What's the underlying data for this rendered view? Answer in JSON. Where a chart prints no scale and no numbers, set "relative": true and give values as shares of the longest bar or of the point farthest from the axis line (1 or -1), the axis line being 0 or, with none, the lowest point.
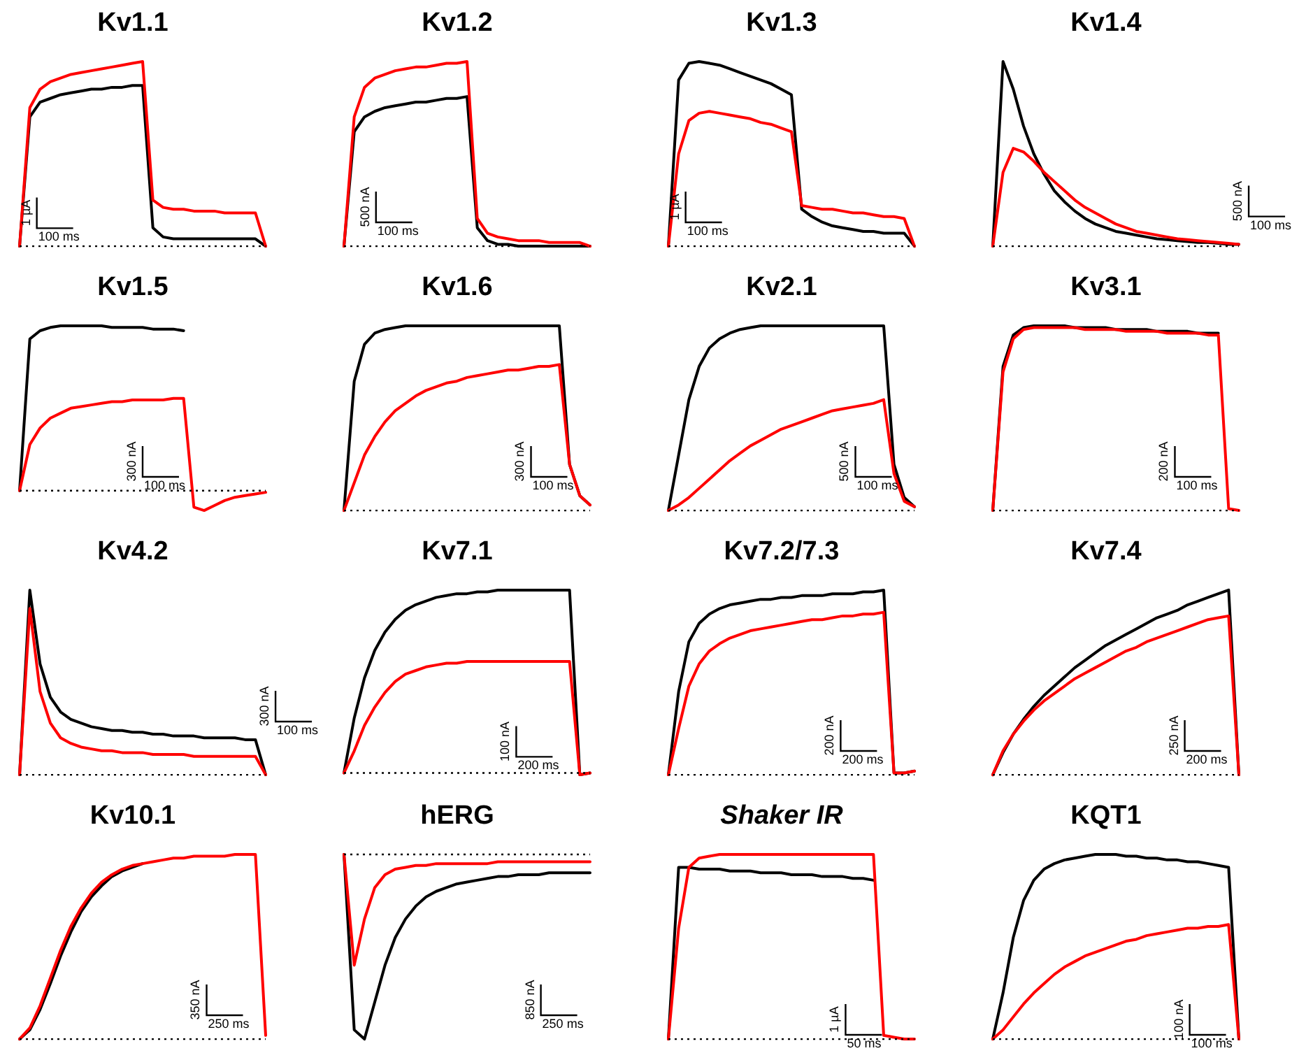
{
  "chart_data": [
    {
      "type": "line",
      "title": "Kv1.1",
      "relative": true,
      "categories": [
        null,
        null,
        null,
        null,
        null,
        null,
        null,
        null,
        null,
        null,
        null,
        null,
        null,
        null,
        null,
        null,
        null,
        null,
        null,
        null,
        null,
        null,
        null,
        null,
        null
      ],
      "series": [
        {
          "color": "#000000",
          "values": [
            0,
            0.7,
            0.78,
            0.8,
            0.82,
            0.83,
            0.84,
            0.85,
            0.85,
            0.86,
            0.86,
            0.87,
            0.87,
            0.1,
            0.05,
            0.04,
            0.04,
            0.04,
            0.04,
            0.04,
            0.04,
            0.04,
            0.04,
            0.04,
            0
          ]
        },
        {
          "color": "#ff0000",
          "values": [
            0,
            0.75,
            0.85,
            0.89,
            0.91,
            0.93,
            0.94,
            0.95,
            0.96,
            0.97,
            0.98,
            0.99,
            1.0,
            0.25,
            0.21,
            0.2,
            0.2,
            0.19,
            0.19,
            0.19,
            0.18,
            0.18,
            0.18,
            0.18,
            0
          ]
        }
      ],
      "ref_lines": [
        {
          "axis": "y",
          "value": 0,
          "color": "#000000",
          "line_style": "dotted"
        }
      ],
      "annotations": [
        "1 µA",
        "100 ms"
      ]
    },
    {
      "type": "line",
      "title": "Kv1.2",
      "relative": true,
      "categories": [
        null,
        null,
        null,
        null,
        null,
        null,
        null,
        null,
        null,
        null,
        null,
        null,
        null,
        null,
        null,
        null,
        null,
        null,
        null,
        null,
        null,
        null,
        null,
        null,
        null
      ],
      "series": [
        {
          "color": "#000000",
          "values": [
            0,
            0.62,
            0.7,
            0.73,
            0.75,
            0.76,
            0.77,
            0.78,
            0.78,
            0.79,
            0.8,
            0.8,
            0.81,
            0.1,
            0.03,
            0.01,
            0.01,
            0,
            0,
            0,
            0,
            0,
            0,
            0,
            0
          ]
        },
        {
          "color": "#ff0000",
          "values": [
            0,
            0.7,
            0.86,
            0.91,
            0.93,
            0.95,
            0.96,
            0.97,
            0.97,
            0.98,
            0.99,
            0.99,
            1.0,
            0.15,
            0.07,
            0.05,
            0.04,
            0.03,
            0.03,
            0.03,
            0.02,
            0.02,
            0.02,
            0.02,
            0
          ]
        }
      ],
      "ref_lines": [
        {
          "axis": "y",
          "value": 0,
          "color": "#000000",
          "line_style": "dotted"
        }
      ],
      "annotations": [
        "500 nA",
        "100 ms"
      ]
    },
    {
      "type": "line",
      "title": "Kv1.3",
      "relative": true,
      "categories": [
        null,
        null,
        null,
        null,
        null,
        null,
        null,
        null,
        null,
        null,
        null,
        null,
        null,
        null,
        null,
        null,
        null,
        null,
        null,
        null,
        null,
        null,
        null,
        null,
        null
      ],
      "series": [
        {
          "color": "#000000",
          "values": [
            0,
            0.9,
            0.99,
            1.0,
            0.99,
            0.98,
            0.96,
            0.94,
            0.92,
            0.9,
            0.88,
            0.85,
            0.82,
            0.2,
            0.16,
            0.13,
            0.11,
            0.1,
            0.09,
            0.08,
            0.08,
            0.07,
            0.07,
            0.07,
            0
          ]
        },
        {
          "color": "#ff0000",
          "values": [
            0,
            0.5,
            0.68,
            0.72,
            0.73,
            0.72,
            0.71,
            0.7,
            0.69,
            0.67,
            0.66,
            0.64,
            0.62,
            0.22,
            0.21,
            0.2,
            0.2,
            0.19,
            0.18,
            0.18,
            0.17,
            0.16,
            0.16,
            0.15,
            0
          ]
        }
      ],
      "ref_lines": [
        {
          "axis": "y",
          "value": 0,
          "color": "#000000",
          "line_style": "dotted"
        }
      ],
      "annotations": [
        "1 µA",
        "100 ms"
      ]
    },
    {
      "type": "line",
      "title": "Kv1.4",
      "relative": true,
      "categories": [
        null,
        null,
        null,
        null,
        null,
        null,
        null,
        null,
        null,
        null,
        null,
        null,
        null,
        null,
        null,
        null,
        null,
        null,
        null,
        null,
        null,
        null,
        null,
        null,
        null
      ],
      "series": [
        {
          "color": "#000000",
          "values": [
            0,
            1.0,
            0.85,
            0.65,
            0.5,
            0.39,
            0.3,
            0.24,
            0.19,
            0.15,
            0.12,
            0.1,
            0.08,
            0.07,
            0.06,
            0.05,
            0.04,
            0.035,
            0.03,
            0.025,
            0.02,
            0.02,
            0.015,
            0.01,
            0.01
          ]
        },
        {
          "color": "#ff0000",
          "values": [
            0,
            0.4,
            0.53,
            0.51,
            0.46,
            0.4,
            0.35,
            0.3,
            0.25,
            0.21,
            0.18,
            0.15,
            0.12,
            0.1,
            0.08,
            0.07,
            0.06,
            0.05,
            0.04,
            0.035,
            0.03,
            0.025,
            0.02,
            0.015,
            0.01
          ]
        }
      ],
      "ref_lines": [
        {
          "axis": "y",
          "value": 0,
          "color": "#000000",
          "line_style": "dotted"
        }
      ],
      "annotations": [
        "500 nA",
        "100 ms"
      ]
    },
    {
      "type": "line",
      "title": "Kv1.5",
      "relative": true,
      "categories": [
        null,
        null,
        null,
        null,
        null,
        null,
        null,
        null,
        null,
        null,
        null,
        null,
        null,
        null,
        null,
        null,
        null,
        null,
        null,
        null,
        null,
        null,
        null,
        null,
        null
      ],
      "series": [
        {
          "color": "#000000",
          "values": [
            0,
            0.92,
            0.97,
            0.99,
            1.0,
            1.0,
            1.0,
            1.0,
            1.0,
            0.99,
            0.99,
            0.99,
            0.99,
            0.98,
            0.98,
            0.98,
            0.97,
            null,
            null,
            null,
            null,
            null,
            null,
            null,
            null
          ]
        },
        {
          "color": "#ff0000",
          "values": [
            0,
            0.28,
            0.38,
            0.44,
            0.47,
            0.5,
            0.51,
            0.52,
            0.53,
            0.54,
            0.54,
            0.55,
            0.55,
            0.55,
            0.55,
            0.56,
            0.56,
            -0.1,
            -0.12,
            -0.09,
            -0.06,
            -0.04,
            -0.03,
            -0.02,
            -0.01
          ]
        }
      ],
      "ref_lines": [
        {
          "axis": "y",
          "value": 0,
          "color": "#000000",
          "line_style": "dotted"
        }
      ],
      "annotations": [
        "300 nA",
        "100 ms"
      ]
    },
    {
      "type": "line",
      "title": "Kv1.6",
      "relative": true,
      "categories": [
        null,
        null,
        null,
        null,
        null,
        null,
        null,
        null,
        null,
        null,
        null,
        null,
        null,
        null,
        null,
        null,
        null,
        null,
        null,
        null,
        null,
        null,
        null,
        null,
        null
      ],
      "series": [
        {
          "color": "#000000",
          "values": [
            0,
            0.7,
            0.9,
            0.96,
            0.98,
            0.99,
            1.0,
            1.0,
            1.0,
            1.0,
            1.0,
            1.0,
            1.0,
            1.0,
            1.0,
            1.0,
            1.0,
            1.0,
            1.0,
            1.0,
            1.0,
            1.0,
            0.25,
            0.08,
            0.03
          ]
        },
        {
          "color": "#ff0000",
          "values": [
            0,
            0.15,
            0.3,
            0.4,
            0.48,
            0.54,
            0.58,
            0.62,
            0.65,
            0.67,
            0.69,
            0.7,
            0.72,
            0.73,
            0.74,
            0.75,
            0.76,
            0.76,
            0.77,
            0.78,
            0.78,
            0.79,
            0.25,
            0.08,
            0.03
          ]
        }
      ],
      "ref_lines": [
        {
          "axis": "y",
          "value": 0,
          "color": "#000000",
          "line_style": "dotted"
        }
      ],
      "annotations": [
        "300 nA",
        "100 ms"
      ]
    },
    {
      "type": "line",
      "title": "Kv2.1",
      "relative": true,
      "categories": [
        null,
        null,
        null,
        null,
        null,
        null,
        null,
        null,
        null,
        null,
        null,
        null,
        null,
        null,
        null,
        null,
        null,
        null,
        null,
        null,
        null,
        null,
        null,
        null,
        null
      ],
      "series": [
        {
          "color": "#000000",
          "values": [
            0,
            0.3,
            0.6,
            0.78,
            0.88,
            0.93,
            0.96,
            0.98,
            0.99,
            1.0,
            1.0,
            1.0,
            1.0,
            1.0,
            1.0,
            1.0,
            1.0,
            1.0,
            1.0,
            1.0,
            1.0,
            1.0,
            0.25,
            0.07,
            0.02
          ]
        },
        {
          "color": "#ff0000",
          "values": [
            0,
            0.03,
            0.07,
            0.12,
            0.17,
            0.22,
            0.27,
            0.31,
            0.35,
            0.38,
            0.41,
            0.44,
            0.46,
            0.48,
            0.5,
            0.52,
            0.54,
            0.55,
            0.56,
            0.57,
            0.58,
            0.6,
            0.2,
            0.05,
            0.02
          ]
        }
      ],
      "ref_lines": [
        {
          "axis": "y",
          "value": 0,
          "color": "#000000",
          "line_style": "dotted"
        }
      ],
      "annotations": [
        "500 nA",
        "100 ms"
      ]
    },
    {
      "type": "line",
      "title": "Kv3.1",
      "relative": true,
      "categories": [
        null,
        null,
        null,
        null,
        null,
        null,
        null,
        null,
        null,
        null,
        null,
        null,
        null,
        null,
        null,
        null,
        null,
        null,
        null,
        null,
        null,
        null,
        null,
        null,
        null
      ],
      "series": [
        {
          "color": "#000000",
          "values": [
            0,
            0.78,
            0.95,
            0.99,
            1.0,
            1.0,
            1.0,
            1.0,
            0.99,
            0.99,
            0.99,
            0.99,
            0.98,
            0.98,
            0.98,
            0.98,
            0.97,
            0.97,
            0.97,
            0.97,
            0.96,
            0.96,
            0.96,
            null,
            null
          ]
        },
        {
          "color": "#ff0000",
          "values": [
            0,
            0.75,
            0.93,
            0.98,
            0.99,
            0.99,
            0.99,
            0.99,
            0.99,
            0.98,
            0.98,
            0.98,
            0.98,
            0.97,
            0.97,
            0.97,
            0.97,
            0.96,
            0.96,
            0.96,
            0.96,
            0.95,
            0.95,
            0.01,
            0
          ]
        }
      ],
      "ref_lines": [
        {
          "axis": "y",
          "value": 0,
          "color": "#000000",
          "line_style": "dotted"
        }
      ],
      "annotations": [
        "200 nA",
        "100 ms"
      ]
    },
    {
      "type": "line",
      "title": "Kv4.2",
      "relative": true,
      "categories": [
        null,
        null,
        null,
        null,
        null,
        null,
        null,
        null,
        null,
        null,
        null,
        null,
        null,
        null,
        null,
        null,
        null,
        null,
        null,
        null,
        null,
        null,
        null,
        null,
        null
      ],
      "series": [
        {
          "color": "#000000",
          "values": [
            0,
            1.0,
            0.6,
            0.42,
            0.34,
            0.3,
            0.28,
            0.26,
            0.25,
            0.24,
            0.24,
            0.23,
            0.23,
            0.22,
            0.22,
            0.21,
            0.21,
            0.21,
            0.2,
            0.2,
            0.2,
            0.2,
            0.19,
            0.19,
            0
          ]
        },
        {
          "color": "#ff0000",
          "values": [
            0,
            0.9,
            0.45,
            0.28,
            0.2,
            0.17,
            0.15,
            0.14,
            0.13,
            0.13,
            0.12,
            0.12,
            0.12,
            0.11,
            0.11,
            0.11,
            0.11,
            0.1,
            0.1,
            0.1,
            0.1,
            0.1,
            0.1,
            0.1,
            0
          ]
        }
      ],
      "ref_lines": [
        {
          "axis": "y",
          "value": 0,
          "color": "#000000",
          "line_style": "dotted"
        }
      ],
      "annotations": [
        "300 nA",
        "100 ms"
      ]
    },
    {
      "type": "line",
      "title": "Kv7.1",
      "relative": true,
      "categories": [
        null,
        null,
        null,
        null,
        null,
        null,
        null,
        null,
        null,
        null,
        null,
        null,
        null,
        null,
        null,
        null,
        null,
        null,
        null,
        null,
        null,
        null,
        null,
        null,
        null
      ],
      "series": [
        {
          "color": "#000000",
          "values": [
            0,
            0.3,
            0.52,
            0.67,
            0.77,
            0.84,
            0.89,
            0.92,
            0.94,
            0.96,
            0.97,
            0.98,
            0.98,
            0.99,
            0.99,
            1.0,
            1.0,
            1.0,
            1.0,
            1.0,
            1.0,
            1.0,
            1.0,
            -0.01,
            0
          ]
        },
        {
          "color": "#ff0000",
          "values": [
            0,
            0.12,
            0.26,
            0.36,
            0.44,
            0.5,
            0.54,
            0.56,
            0.58,
            0.59,
            0.6,
            0.6,
            0.61,
            0.61,
            0.61,
            0.61,
            0.61,
            0.61,
            0.61,
            0.61,
            0.61,
            0.61,
            0.61,
            -0.01,
            0
          ]
        }
      ],
      "ref_lines": [
        {
          "axis": "y",
          "value": 0,
          "color": "#000000",
          "line_style": "dotted"
        }
      ],
      "annotations": [
        "100 nA",
        "200 ms"
      ]
    },
    {
      "type": "line",
      "title": "Kv7.2/7.3",
      "relative": true,
      "categories": [
        null,
        null,
        null,
        null,
        null,
        null,
        null,
        null,
        null,
        null,
        null,
        null,
        null,
        null,
        null,
        null,
        null,
        null,
        null,
        null,
        null,
        null,
        null,
        null,
        null
      ],
      "series": [
        {
          "color": "#000000",
          "values": [
            0,
            0.45,
            0.72,
            0.82,
            0.87,
            0.9,
            0.92,
            0.93,
            0.94,
            0.95,
            0.95,
            0.96,
            0.96,
            0.97,
            0.97,
            0.97,
            0.98,
            0.98,
            0.98,
            0.99,
            0.99,
            1.0,
            0.01,
            0.01,
            0.02
          ]
        },
        {
          "color": "#ff0000",
          "values": [
            0,
            0.25,
            0.48,
            0.6,
            0.67,
            0.71,
            0.74,
            0.76,
            0.78,
            0.79,
            0.8,
            0.81,
            0.82,
            0.83,
            0.84,
            0.84,
            0.85,
            0.86,
            0.86,
            0.87,
            0.87,
            0.88,
            0.01,
            0.01,
            0.02
          ]
        }
      ],
      "ref_lines": [
        {
          "axis": "y",
          "value": 0,
          "color": "#000000",
          "line_style": "dotted"
        }
      ],
      "annotations": [
        "200 nA",
        "200 ms"
      ]
    },
    {
      "type": "line",
      "title": "Kv7.4",
      "relative": true,
      "categories": [
        null,
        null,
        null,
        null,
        null,
        null,
        null,
        null,
        null,
        null,
        null,
        null,
        null,
        null,
        null,
        null,
        null,
        null,
        null,
        null,
        null,
        null,
        null,
        null,
        null
      ],
      "series": [
        {
          "color": "#000000",
          "values": [
            0,
            0.12,
            0.22,
            0.3,
            0.37,
            0.43,
            0.48,
            0.53,
            0.58,
            0.62,
            0.66,
            0.7,
            0.73,
            0.76,
            0.79,
            0.82,
            0.85,
            0.87,
            0.89,
            0.92,
            0.94,
            0.96,
            0.98,
            1.0,
            0
          ]
        },
        {
          "color": "#ff0000",
          "values": [
            0,
            0.13,
            0.22,
            0.29,
            0.35,
            0.4,
            0.44,
            0.48,
            0.52,
            0.55,
            0.58,
            0.61,
            0.64,
            0.67,
            0.69,
            0.72,
            0.74,
            0.76,
            0.78,
            0.8,
            0.82,
            0.84,
            0.85,
            0.86,
            0
          ]
        }
      ],
      "ref_lines": [
        {
          "axis": "y",
          "value": 0,
          "color": "#000000",
          "line_style": "dotted"
        }
      ],
      "annotations": [
        "250 nA",
        "200 ms"
      ]
    },
    {
      "type": "line",
      "title": "Kv10.1",
      "relative": true,
      "categories": [
        null,
        null,
        null,
        null,
        null,
        null,
        null,
        null,
        null,
        null,
        null,
        null,
        null,
        null,
        null,
        null,
        null,
        null,
        null,
        null,
        null,
        null,
        null,
        null,
        null
      ],
      "series": [
        {
          "color": "#000000",
          "values": [
            0,
            0.05,
            0.16,
            0.3,
            0.45,
            0.58,
            0.69,
            0.77,
            0.83,
            0.88,
            0.91,
            0.93,
            0.95,
            null,
            null,
            null,
            null,
            null,
            null,
            null,
            null,
            null,
            null,
            null,
            null
          ]
        },
        {
          "color": "#ff0000",
          "values": [
            0,
            0.06,
            0.18,
            0.33,
            0.48,
            0.61,
            0.71,
            0.79,
            0.85,
            0.89,
            0.92,
            0.94,
            0.95,
            0.96,
            0.97,
            0.98,
            0.98,
            0.99,
            0.99,
            0.99,
            0.99,
            1.0,
            1.0,
            1.0,
            0.02
          ]
        }
      ],
      "ref_lines": [
        {
          "axis": "y",
          "value": 0,
          "color": "#000000",
          "line_style": "dotted"
        }
      ],
      "annotations": [
        "350 nA",
        "250 ms"
      ]
    },
    {
      "type": "line",
      "title": "hERG",
      "relative": true,
      "categories": [
        null,
        null,
        null,
        null,
        null,
        null,
        null,
        null,
        null,
        null,
        null,
        null,
        null,
        null,
        null,
        null,
        null,
        null,
        null,
        null,
        null,
        null,
        null,
        null,
        null
      ],
      "series": [
        {
          "color": "#000000",
          "values": [
            0,
            -0.95,
            -1.0,
            -0.8,
            -0.6,
            -0.45,
            -0.35,
            -0.28,
            -0.23,
            -0.2,
            -0.18,
            -0.16,
            -0.15,
            -0.14,
            -0.13,
            -0.12,
            -0.12,
            -0.11,
            -0.11,
            -0.11,
            -0.1,
            -0.1,
            -0.1,
            -0.1,
            -0.1
          ]
        },
        {
          "color": "#ff0000",
          "values": [
            0,
            -0.6,
            -0.35,
            -0.18,
            -0.11,
            -0.08,
            -0.07,
            -0.06,
            -0.06,
            -0.05,
            -0.05,
            -0.05,
            -0.05,
            -0.05,
            -0.05,
            -0.04,
            -0.04,
            -0.04,
            -0.04,
            -0.04,
            -0.04,
            -0.04,
            -0.04,
            -0.04,
            -0.04
          ]
        }
      ],
      "ref_lines": [
        {
          "axis": "y",
          "value": 0,
          "color": "#000000",
          "line_style": "dotted"
        }
      ],
      "annotations": [
        "850 nA",
        "250 ms"
      ]
    },
    {
      "type": "line",
      "title": "Shaker IR",
      "relative": true,
      "categories": [
        null,
        null,
        null,
        null,
        null,
        null,
        null,
        null,
        null,
        null,
        null,
        null,
        null,
        null,
        null,
        null,
        null,
        null,
        null,
        null,
        null,
        null,
        null,
        null,
        null
      ],
      "series": [
        {
          "color": "#000000",
          "values": [
            0,
            0.93,
            0.93,
            0.92,
            0.92,
            0.92,
            0.91,
            0.91,
            0.91,
            0.9,
            0.9,
            0.9,
            0.89,
            0.89,
            0.89,
            0.88,
            0.88,
            0.88,
            0.87,
            0.87,
            0.86,
            null,
            null,
            null,
            null
          ]
        },
        {
          "color": "#ff0000",
          "values": [
            0,
            0.6,
            0.93,
            0.98,
            0.99,
            1.0,
            1.0,
            1.0,
            1.0,
            1.0,
            1.0,
            1.0,
            1.0,
            1.0,
            1.0,
            1.0,
            1.0,
            1.0,
            1.0,
            1.0,
            1.0,
            0.02,
            0.01,
            0,
            0
          ]
        }
      ],
      "ref_lines": [
        {
          "axis": "y",
          "value": 0,
          "color": "#000000",
          "line_style": "dotted"
        }
      ],
      "annotations": [
        "1 µA",
        "50 ms"
      ]
    },
    {
      "type": "line",
      "title": "KQT1",
      "relative": true,
      "categories": [
        null,
        null,
        null,
        null,
        null,
        null,
        null,
        null,
        null,
        null,
        null,
        null,
        null,
        null,
        null,
        null,
        null,
        null,
        null,
        null,
        null,
        null,
        null,
        null,
        null
      ],
      "series": [
        {
          "color": "#000000",
          "values": [
            0,
            0.25,
            0.55,
            0.75,
            0.86,
            0.92,
            0.95,
            0.97,
            0.98,
            0.99,
            1.0,
            1.0,
            1.0,
            0.99,
            0.99,
            0.98,
            0.98,
            0.97,
            0.97,
            0.96,
            0.96,
            0.95,
            0.94,
            0.93,
            0
          ]
        },
        {
          "color": "#ff0000",
          "values": [
            0,
            0.05,
            0.12,
            0.19,
            0.25,
            0.3,
            0.35,
            0.39,
            0.42,
            0.45,
            0.47,
            0.49,
            0.51,
            0.53,
            0.54,
            0.56,
            0.57,
            0.58,
            0.59,
            0.6,
            0.6,
            0.61,
            0.61,
            0.62,
            0
          ]
        }
      ],
      "ref_lines": [
        {
          "axis": "y",
          "value": 0,
          "color": "#000000",
          "line_style": "dotted"
        }
      ],
      "annotations": [
        "100 nA",
        "100 ms"
      ]
    }
  ]
}
